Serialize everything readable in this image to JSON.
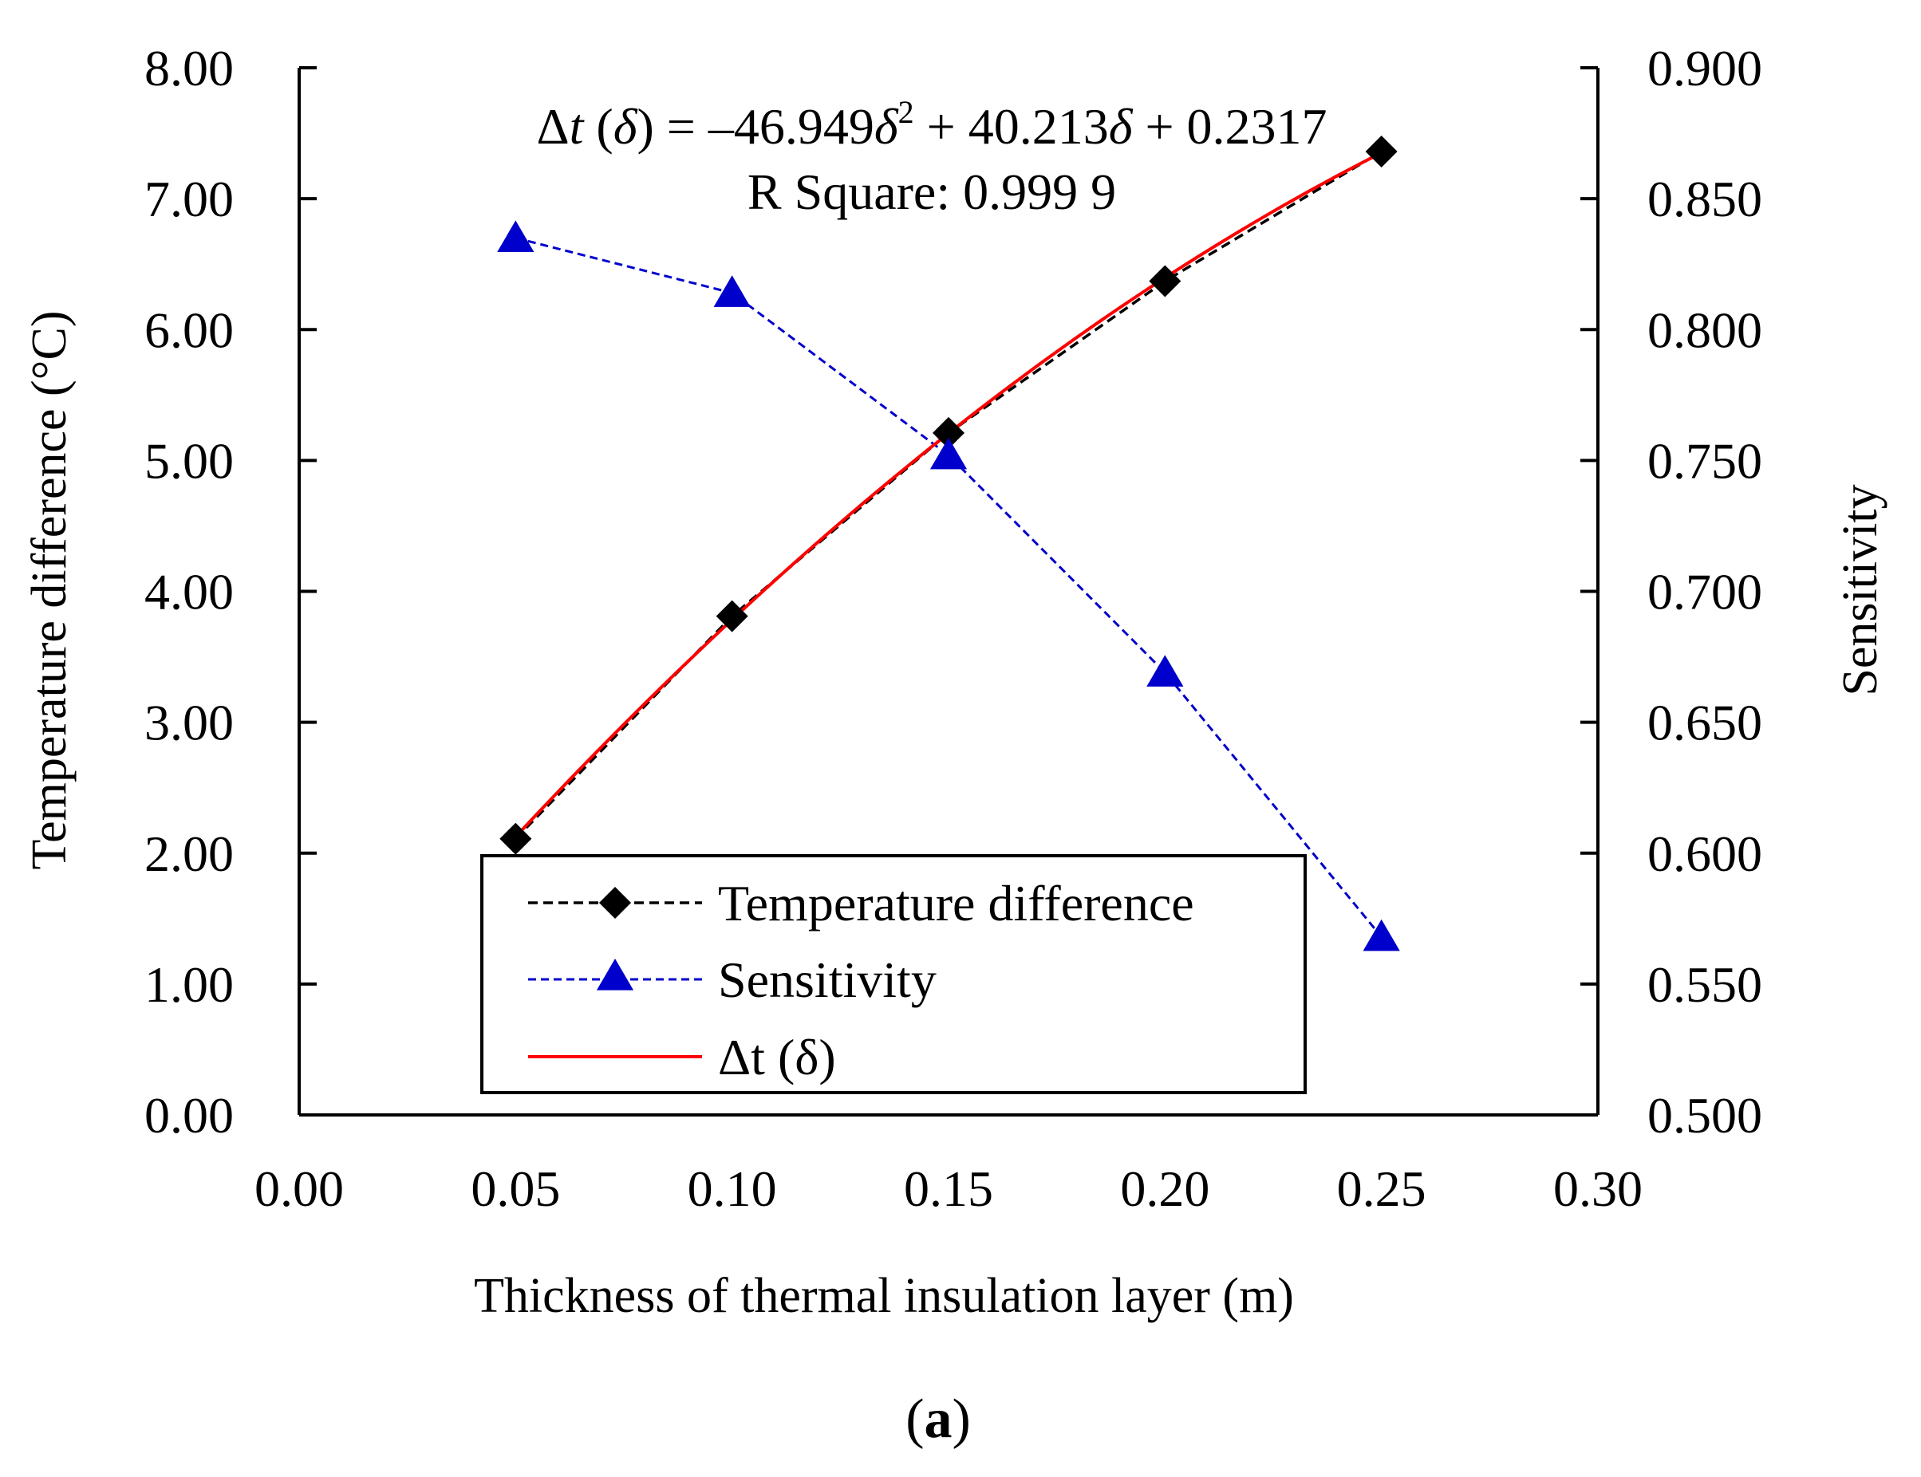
{
  "chart_data": {
    "type": "line",
    "x": [
      0.05,
      0.1,
      0.15,
      0.2,
      0.25
    ],
    "xlabel": "Thickness of thermal insulation layer (m)",
    "ylabel": "Temperature difference  (°C)",
    "y2label": "Sensitivity",
    "xlim": [
      0.0,
      0.3
    ],
    "ylim": [
      0.0,
      8.0
    ],
    "y2lim": [
      0.5,
      0.9
    ],
    "xticks": [
      "0.00",
      "0.05",
      "0.10",
      "0.15",
      "0.20",
      "0.25",
      "0.30"
    ],
    "yticks": [
      "0.00",
      "1.00",
      "2.00",
      "3.00",
      "4.00",
      "5.00",
      "6.00",
      "7.00",
      "8.00"
    ],
    "y2ticks": [
      "0.500",
      "0.550",
      "0.600",
      "0.650",
      "0.700",
      "0.750",
      "0.800",
      "0.850",
      "0.900"
    ],
    "grid": false,
    "legend_position": "bottom-center",
    "series": [
      {
        "name": "Temperature difference",
        "axis": "left",
        "values": [
          2.11,
          3.81,
          5.21,
          6.37,
          7.36
        ],
        "color": "#000000",
        "marker": "diamond",
        "line": "dashed"
      },
      {
        "name": "Sensitivity",
        "axis": "right",
        "values": [
          0.835,
          0.814,
          0.752,
          0.669,
          0.568
        ],
        "color": "#0000cc",
        "marker": "triangle",
        "line": "dashed"
      },
      {
        "name": "Δt (δ)",
        "axis": "left",
        "fit": {
          "a": -46.949,
          "b": 40.213,
          "c": 0.2317,
          "domain": [
            0.05,
            0.25
          ]
        },
        "color": "#ff0000",
        "marker": "none",
        "line": "solid"
      }
    ],
    "annotation": {
      "eq_lhs": "Δ",
      "eq_t": "t",
      "eq_open": " (",
      "eq_delta1": "δ",
      "eq_mid": ") = –46.949",
      "eq_delta2": "δ",
      "eq_sup": "2",
      "eq_mid2": " + 40.213",
      "eq_delta3": "δ",
      "eq_end": " + 0.2317",
      "r_square": "R Square: 0.999 9"
    },
    "caption_open": "(",
    "caption_letter": "a",
    "caption_close": ")"
  }
}
